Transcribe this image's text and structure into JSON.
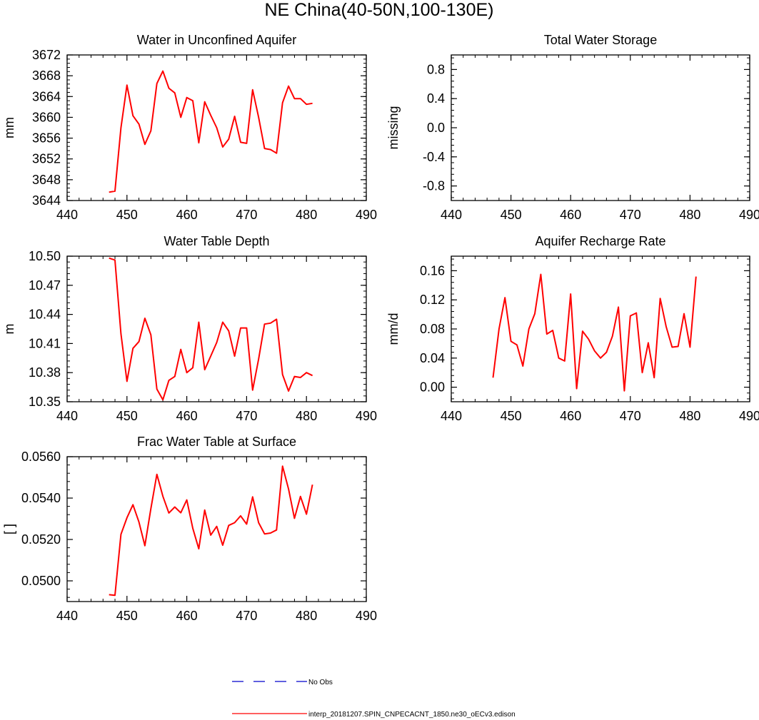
{
  "page_title": "NE China(40-50N,100-130E)",
  "legend": {
    "obs_label": "No Obs",
    "obs_color": "#0000cc",
    "model_label": "interp_20181207.SPIN_CNPECACNT_1850.ne30_oECv3.edison",
    "model_color": "#ff0000"
  },
  "chart_data": [
    {
      "type": "line",
      "title": "Water in Unconfined Aquifer",
      "ylabel": "mm",
      "xlim": [
        440,
        490
      ],
      "ylim": [
        3644,
        3672
      ],
      "xticks": [
        440,
        450,
        460,
        470,
        480,
        490
      ],
      "yticks": [
        3644,
        3648,
        3652,
        3656,
        3660,
        3664,
        3668,
        3672
      ],
      "ytick_labels": [
        "3644",
        "3648",
        "3652",
        "3656",
        "3660",
        "3664",
        "3668",
        "3672"
      ],
      "x": [
        447,
        448,
        449,
        450,
        451,
        452,
        453,
        454,
        455,
        456,
        457,
        458,
        459,
        460,
        461,
        462,
        463,
        464,
        465,
        466,
        467,
        468,
        469,
        470,
        471,
        472,
        473,
        474,
        475,
        476,
        477,
        478,
        479,
        480,
        481
      ],
      "series": [
        {
          "color": "#ff0000",
          "values": [
            3645.6,
            3645.8,
            3658,
            3666.2,
            3660.3,
            3658.7,
            3654.8,
            3657.4,
            3666.5,
            3668.9,
            3665.6,
            3664.7,
            3660,
            3663.8,
            3663.2,
            3655.1,
            3663,
            3660.4,
            3658,
            3654.3,
            3655.8,
            3660.2,
            3655.2,
            3655,
            3665.3,
            3660,
            3654,
            3653.8,
            3653.1,
            3662.8,
            3666,
            3663.6,
            3663.6,
            3662.5,
            3662.7
          ]
        }
      ]
    },
    {
      "type": "line",
      "title": "Total Water Storage",
      "ylabel": "missing",
      "xlim": [
        440,
        490
      ],
      "ylim": [
        -1,
        1
      ],
      "xticks": [
        440,
        450,
        460,
        470,
        480,
        490
      ],
      "yticks": [
        -0.8,
        -0.4,
        0.0,
        0.4,
        0.8
      ],
      "ytick_labels": [
        "-0.8",
        "-0.4",
        "0.0",
        "0.4",
        "0.8"
      ],
      "x": [],
      "series": []
    },
    {
      "type": "line",
      "title": "Water Table Depth",
      "ylabel": "m",
      "xlim": [
        440,
        490
      ],
      "ylim": [
        10.35,
        10.5
      ],
      "xticks": [
        440,
        450,
        460,
        470,
        480,
        490
      ],
      "yticks": [
        10.35,
        10.38,
        10.41,
        10.44,
        10.47,
        10.5
      ],
      "ytick_labels": [
        "10.35",
        "10.38",
        "10.41",
        "10.44",
        "10.47",
        "10.50"
      ],
      "x": [
        447,
        448,
        449,
        450,
        451,
        452,
        453,
        454,
        455,
        456,
        457,
        458,
        459,
        460,
        461,
        462,
        463,
        464,
        465,
        466,
        467,
        468,
        469,
        470,
        471,
        472,
        473,
        474,
        475,
        476,
        477,
        478,
        479,
        480,
        481
      ],
      "series": [
        {
          "color": "#ff0000",
          "values": [
            10.498,
            10.496,
            10.42,
            10.371,
            10.405,
            10.412,
            10.436,
            10.419,
            10.363,
            10.352,
            10.372,
            10.376,
            10.404,
            10.38,
            10.385,
            10.432,
            10.383,
            10.397,
            10.411,
            10.432,
            10.423,
            10.397,
            10.426,
            10.426,
            10.362,
            10.394,
            10.43,
            10.431,
            10.435,
            10.378,
            10.361,
            10.376,
            10.375,
            10.38,
            10.377
          ]
        }
      ]
    },
    {
      "type": "line",
      "title": "Aquifer Recharge Rate",
      "ylabel": "mm/d",
      "xlim": [
        440,
        490
      ],
      "ylim": [
        -0.02,
        0.18
      ],
      "xticks": [
        440,
        450,
        460,
        470,
        480,
        490
      ],
      "yticks": [
        0.0,
        0.04,
        0.08,
        0.12,
        0.16
      ],
      "ytick_labels": [
        "0.00",
        "0.04",
        "0.08",
        "0.12",
        "0.16"
      ],
      "x": [
        447,
        448,
        449,
        450,
        451,
        452,
        453,
        454,
        455,
        456,
        457,
        458,
        459,
        460,
        461,
        462,
        463,
        464,
        465,
        466,
        467,
        468,
        469,
        470,
        471,
        472,
        473,
        474,
        475,
        476,
        477,
        478,
        479,
        480,
        481
      ],
      "series": [
        {
          "color": "#ff0000",
          "values": [
            0.013,
            0.08,
            0.123,
            0.063,
            0.058,
            0.029,
            0.08,
            0.101,
            0.155,
            0.073,
            0.078,
            0.04,
            0.036,
            0.128,
            -0.002,
            0.077,
            0.066,
            0.05,
            0.04,
            0.048,
            0.07,
            0.11,
            -0.005,
            0.098,
            0.102,
            0.02,
            0.061,
            0.013,
            0.122,
            0.083,
            0.055,
            0.056,
            0.101,
            0.055,
            0.152
          ]
        }
      ]
    },
    {
      "type": "line",
      "title": "Frac Water Table at Surface",
      "ylabel": "[ ]",
      "xlim": [
        440,
        490
      ],
      "ylim": [
        0.049,
        0.056
      ],
      "xticks": [
        440,
        450,
        460,
        470,
        480,
        490
      ],
      "yticks": [
        0.05,
        0.052,
        0.054,
        0.056
      ],
      "ytick_labels": [
        "0.0500",
        "0.0520",
        "0.0540",
        "0.0560"
      ],
      "x": [
        447,
        448,
        449,
        450,
        451,
        452,
        453,
        454,
        455,
        456,
        457,
        458,
        459,
        460,
        461,
        462,
        463,
        464,
        465,
        466,
        467,
        468,
        469,
        470,
        471,
        472,
        473,
        474,
        475,
        476,
        477,
        478,
        479,
        480,
        481
      ],
      "series": [
        {
          "color": "#ff0000",
          "values": [
            0.04933,
            0.0493,
            0.05225,
            0.05305,
            0.05368,
            0.05284,
            0.0517,
            0.05349,
            0.05515,
            0.05409,
            0.05328,
            0.05357,
            0.05329,
            0.05391,
            0.05254,
            0.05155,
            0.05342,
            0.05221,
            0.05263,
            0.05172,
            0.05268,
            0.05281,
            0.05314,
            0.05274,
            0.05406,
            0.05281,
            0.05227,
            0.05231,
            0.05246,
            0.05554,
            0.05444,
            0.05302,
            0.05408,
            0.05322,
            0.05465
          ]
        }
      ]
    }
  ]
}
